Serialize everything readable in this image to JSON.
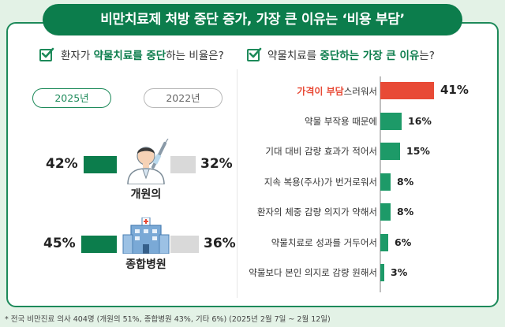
{
  "title": "비만치료제 처방 중단 증가, 가장 큰 이유는 ‘비용 부담’",
  "left_question": {
    "pre": "환자가 ",
    "hl": "약물치료를 중단",
    "post": "하는 비율은?"
  },
  "right_question": {
    "pre": "약물치료를 ",
    "hl": "중단하는 가장 큰 이유",
    "post": "는?"
  },
  "legend": {
    "year_a": "2025년",
    "year_b": "2022년"
  },
  "icons": {
    "doctor": "doctor-icon",
    "hospital": "hospital-icon",
    "check": "checkbox-icon"
  },
  "colors": {
    "green": "#0c7d4c",
    "red": "#e84a36",
    "gray": "#d9d9d9",
    "bar_green": "#1d9a68"
  },
  "chart_data": [
    {
      "type": "bar",
      "orientation": "horizontal-butterfly",
      "categories": [
        "개원의",
        "종합병원"
      ],
      "series": [
        {
          "name": "2025년",
          "values": [
            42,
            45
          ]
        },
        {
          "name": "2022년",
          "values": [
            32,
            36
          ]
        }
      ],
      "value_labels": [
        [
          "42%",
          "45%"
        ],
        [
          "32%",
          "36%"
        ]
      ]
    },
    {
      "type": "bar",
      "orientation": "horizontal",
      "categories": [
        "가격이 부담스러워서",
        "약물 부작용 때문에",
        "기대 대비 감량 효과가 적어서",
        "지속 복용(주사)가 번거로워서",
        "환자의 체중 감량 의지가 약해서",
        "약물치료로 성과를 거두어서",
        "약물보다 본인 의지로 감량 원해서"
      ],
      "highlight_prefix": "가격이 부담",
      "highlight_rest": "스러워서",
      "values": [
        41,
        16,
        15,
        8,
        8,
        6,
        3
      ],
      "value_labels": [
        "41%",
        "16%",
        "15%",
        "8%",
        "8%",
        "6%",
        "3%"
      ]
    }
  ],
  "footnote": "* 전국 비만진료 의사 404명 (개원의 51%, 종합병원 43%, 기타 6%) (2025년 2월 7일 ~ 2월 12일)"
}
